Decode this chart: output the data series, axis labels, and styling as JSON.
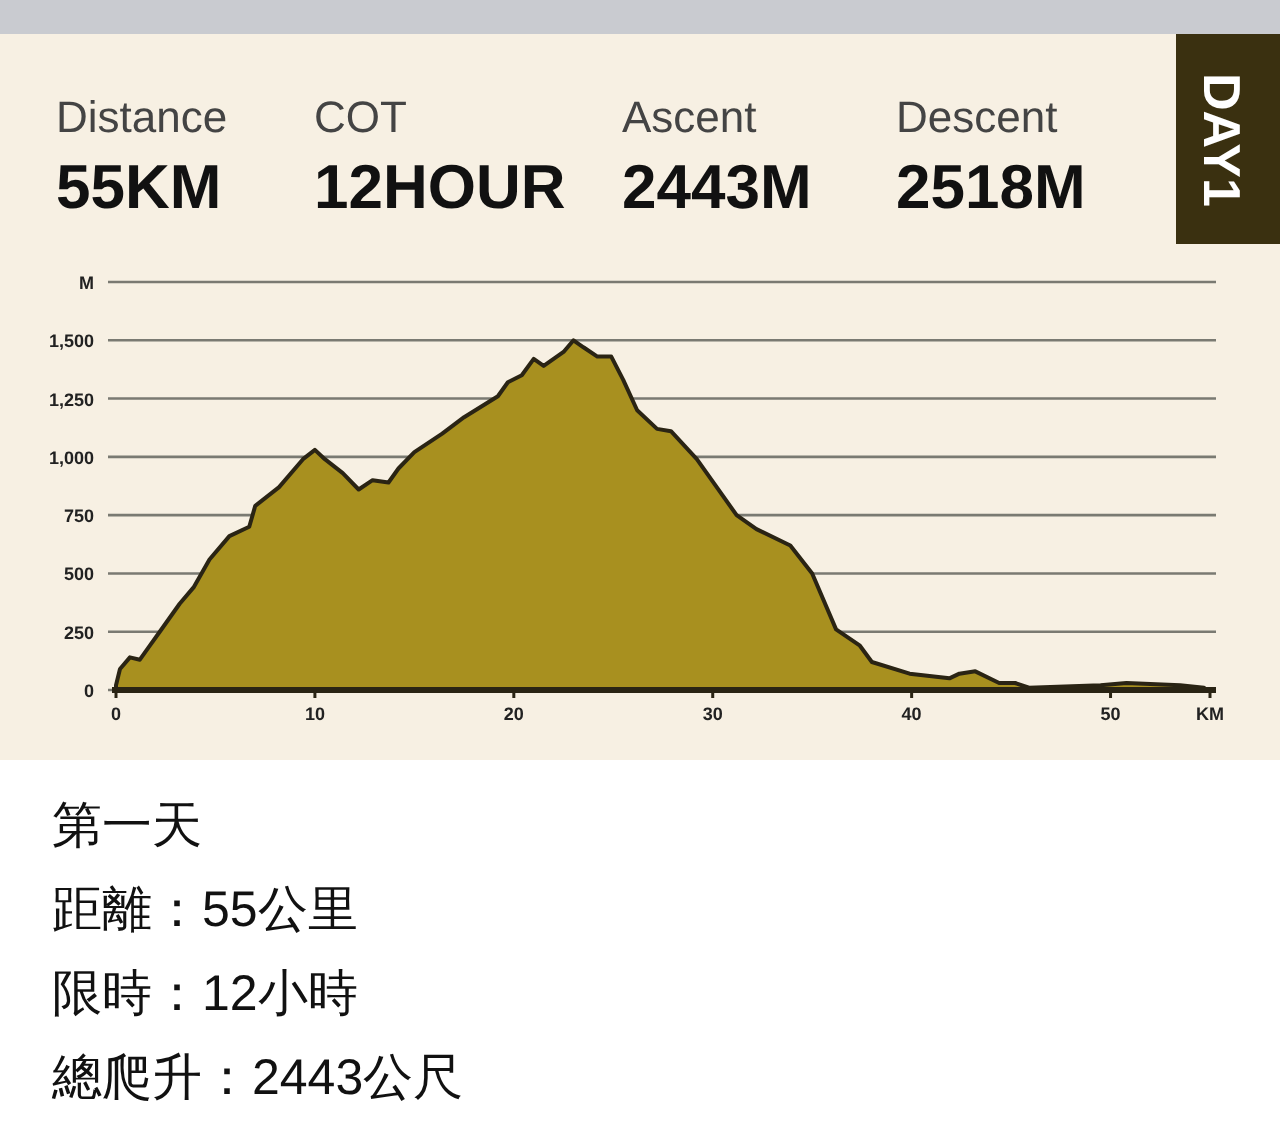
{
  "chart_data": {
    "type": "area",
    "title": "DAY1",
    "annotations": [
      "Distance",
      "55KM",
      "COT",
      "12HOUR",
      "Ascent",
      "2443M",
      "Descent",
      "2518M",
      "第一天",
      "距離：55公里",
      "限時：12小時",
      "總爬升：2443公尺"
    ],
    "x": [
      0,
      0.2,
      0.7,
      1.2,
      1.7,
      2.2,
      3.2,
      3.9,
      4.7,
      5.7,
      6.7,
      7.0,
      8.2,
      9.4,
      10.0,
      10.5,
      11.4,
      12.2,
      12.9,
      13.7,
      14.2,
      15.0,
      16.4,
      17.5,
      19.2,
      19.7,
      20.4,
      21.0,
      21.5,
      22.5,
      23.0,
      23.5,
      24.2,
      24.9,
      25.5,
      26.2,
      27.2,
      27.9,
      29.2,
      31.2,
      32.2,
      33.9,
      35.0,
      36.2,
      37.4,
      38.0,
      39.9,
      41.9,
      42.4,
      43.2,
      44.4,
      45.2,
      45.9,
      49.5,
      50.8,
      53.5,
      54.7
    ],
    "series": [
      {
        "color": "#a8901f",
        "values": [
          20,
          90,
          140,
          130,
          190,
          250,
          370,
          440,
          560,
          660,
          700,
          790,
          870,
          990,
          1030,
          990,
          930,
          860,
          900,
          890,
          950,
          1020,
          1100,
          1170,
          1260,
          1320,
          1350,
          1420,
          1390,
          1450,
          1500,
          1470,
          1430,
          1430,
          1330,
          1200,
          1120,
          1110,
          990,
          750,
          690,
          620,
          500,
          260,
          190,
          120,
          70,
          50,
          70,
          80,
          30,
          30,
          10,
          20,
          30,
          20,
          10
        ]
      }
    ],
    "xlim": [
      0,
      55
    ],
    "ylim": [
      0,
      1750
    ],
    "xticks": [
      0,
      10,
      20,
      30,
      40,
      50,
      {
        "value": 55,
        "label": "KM"
      }
    ],
    "yticks": [
      0,
      250,
      500,
      750,
      {
        "value": 1000,
        "label": "1,000"
      },
      {
        "value": 1250,
        "label": "1,250"
      },
      {
        "value": 1500,
        "label": "1,500"
      },
      {
        "value": 1750,
        "label": "M"
      }
    ],
    "grid": "y"
  }
}
